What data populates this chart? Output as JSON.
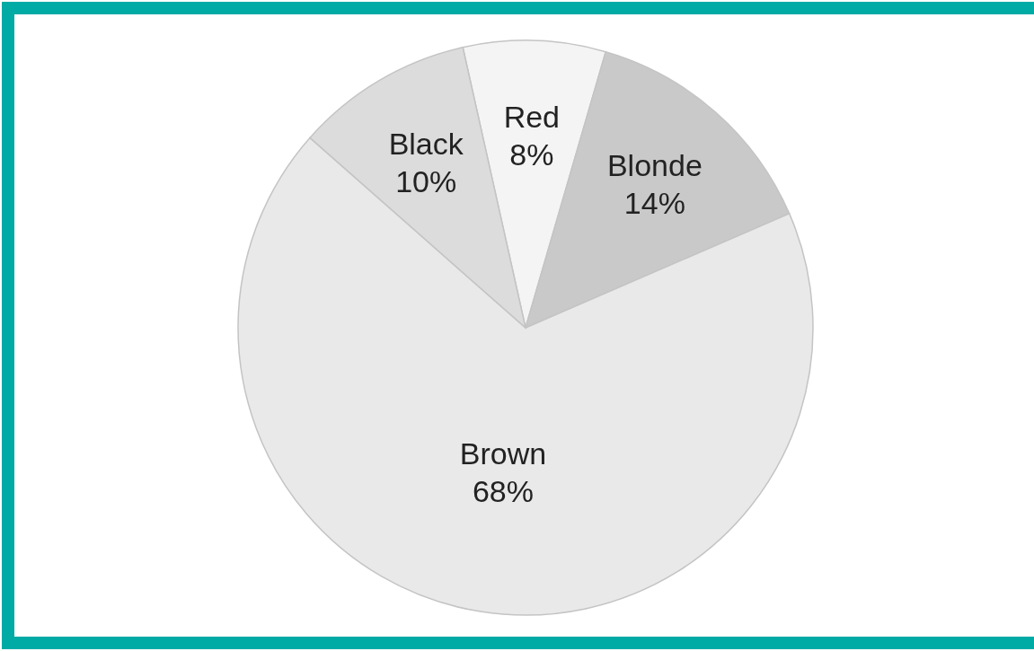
{
  "chart_data": {
    "type": "pie",
    "categories": [
      "Red",
      "Blonde",
      "Brown",
      "Black"
    ],
    "values": [
      8,
      14,
      68,
      10
    ],
    "value_labels": [
      "8%",
      "14%",
      "68%",
      "10%"
    ],
    "colors": [
      "#f4f4f4",
      "#c9c9c9",
      "#e9e9e9",
      "#dcdcdc"
    ]
  }
}
